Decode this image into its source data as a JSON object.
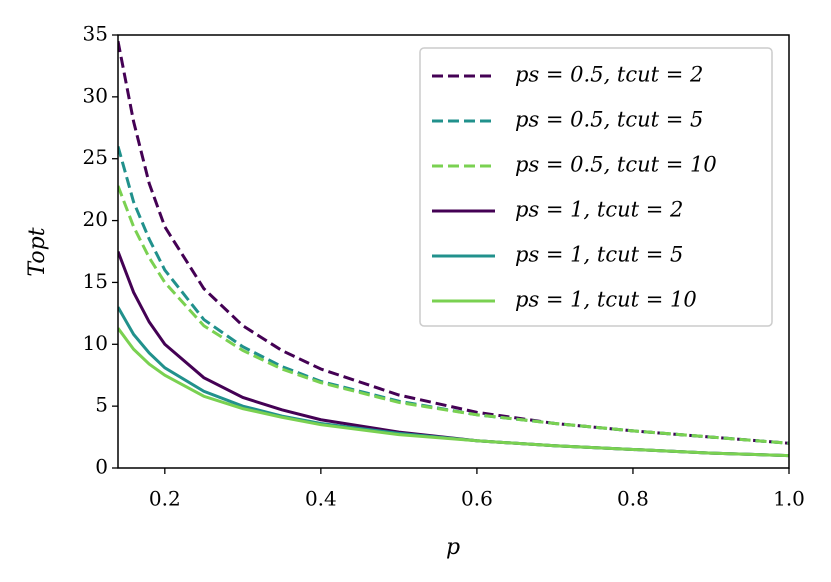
{
  "chart_data": {
    "type": "line",
    "xlabel": "p",
    "ylabel": "Topt",
    "x": [
      0.14,
      0.16,
      0.18,
      0.2,
      0.25,
      0.3,
      0.35,
      0.4,
      0.5,
      0.6,
      0.7,
      0.8,
      0.9,
      1.0
    ],
    "series": [
      {
        "name": "ps = 0.5, tcut = 2",
        "color": "#440154",
        "linestyle": "dashed",
        "values": [
          34.5,
          28,
          23,
          19.5,
          14.5,
          11.5,
          9.5,
          8,
          5.9,
          4.5,
          3.6,
          3,
          2.5,
          2
        ]
      },
      {
        "name": "ps = 0.5, tcut = 5",
        "color": "#21918c",
        "linestyle": "dashed",
        "values": [
          26,
          21.5,
          18.5,
          16,
          12,
          9.8,
          8.2,
          7,
          5.4,
          4.3,
          3.6,
          3,
          2.5,
          2
        ]
      },
      {
        "name": "ps = 0.5, tcut = 10",
        "color": "#7ad151",
        "linestyle": "dashed",
        "values": [
          22.8,
          19.5,
          17,
          15,
          11.5,
          9.5,
          8,
          6.9,
          5.3,
          4.3,
          3.6,
          3,
          2.5,
          2
        ]
      },
      {
        "name": "ps = 1, tcut = 2",
        "color": "#440154",
        "linestyle": "solid",
        "values": [
          17.5,
          14.2,
          11.8,
          10,
          7.3,
          5.7,
          4.7,
          3.9,
          2.9,
          2.2,
          1.8,
          1.5,
          1.2,
          1
        ]
      },
      {
        "name": "ps = 1, tcut = 5",
        "color": "#21918c",
        "linestyle": "solid",
        "values": [
          13,
          10.8,
          9.3,
          8.1,
          6.2,
          5,
          4.2,
          3.6,
          2.8,
          2.2,
          1.8,
          1.5,
          1.2,
          1
        ]
      },
      {
        "name": "ps = 1, tcut = 10",
        "color": "#7ad151",
        "linestyle": "solid",
        "values": [
          11.3,
          9.6,
          8.4,
          7.5,
          5.8,
          4.8,
          4.1,
          3.5,
          2.7,
          2.2,
          1.8,
          1.5,
          1.2,
          1
        ]
      }
    ],
    "xlim": [
      0.14,
      1.0
    ],
    "ylim": [
      0,
      35
    ],
    "xticks": [
      0.2,
      0.4,
      0.6,
      0.8,
      {
        "value": 1.0,
        "label": "1.0"
      }
    ],
    "yticks": [
      0,
      5,
      10,
      15,
      20,
      25,
      30,
      35
    ],
    "legend": "upper right"
  }
}
